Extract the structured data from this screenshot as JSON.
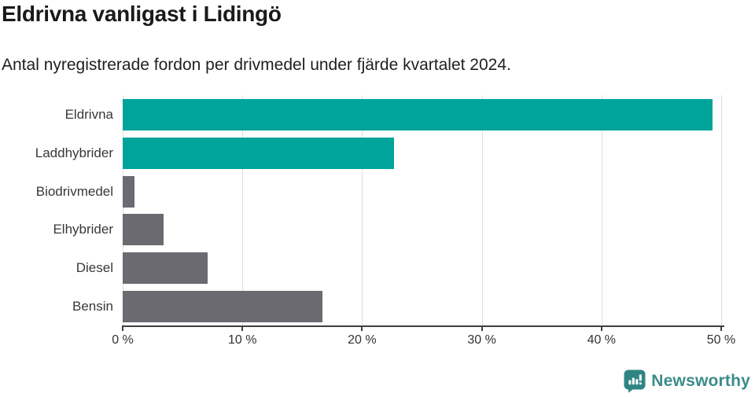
{
  "header": {
    "title": "Eldrivna vanligast i Lidingö",
    "subtitle": "Antal nyregistrerade fordon per drivmedel under fjärde kvartalet 2024."
  },
  "chart_data": {
    "type": "bar",
    "orientation": "horizontal",
    "title": "Eldrivna vanligast i Lidingö",
    "subtitle": "Antal nyregistrerade fordon per drivmedel under fjärde kvartalet 2024.",
    "categories": [
      "Eldrivna",
      "Laddhybrider",
      "Biodrivmedel",
      "Elhybrider",
      "Diesel",
      "Bensin"
    ],
    "values": [
      49.3,
      22.7,
      1.0,
      3.4,
      7.1,
      16.7
    ],
    "unit": "%",
    "bar_colors": [
      "#00a49a",
      "#00a49a",
      "#6a6a70",
      "#6a6a70",
      "#6a6a70",
      "#6a6a70"
    ],
    "xlim": [
      0,
      50
    ],
    "x_tick_values": [
      0,
      10,
      20,
      30,
      40,
      50
    ],
    "x_tick_labels": [
      "0 %",
      "10 %",
      "20 %",
      "30 %",
      "40 %",
      "50 %"
    ],
    "grid": "vertical-gridlines",
    "legend": "none"
  },
  "colors": {
    "highlight": "#00a49a",
    "muted": "#6a6a70",
    "gridline": "#dedede",
    "axis": "#3f3f3f",
    "title_text": "#1a1a1a",
    "label_text": "#383838"
  },
  "footer": {
    "brand": "Newsworthy",
    "logo_icon": "newsworthy-chart-bubble-icon",
    "brand_color": "#3b8c89",
    "icon_color": "#2f8584"
  }
}
